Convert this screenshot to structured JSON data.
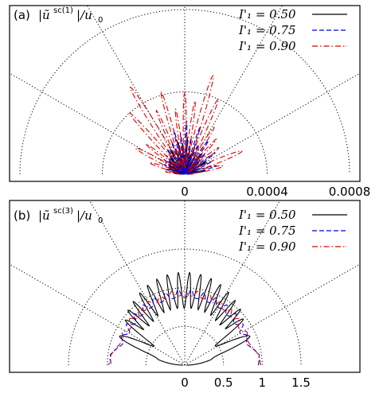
{
  "colors": {
    "s050": "#000000",
    "s075": "#0000dd",
    "s090": "#dd0000"
  },
  "chart_data": [
    {
      "type": "polar-line",
      "panel_label": "(a)",
      "title_main": "|ũ",
      "title_sup": "sc(1)",
      "title_tail": "|/u",
      "title_sub": "0",
      "radial_ticks": [
        "0",
        "0.0004",
        "0.0008"
      ],
      "rlim": [
        0,
        0.0008
      ],
      "angle_range_deg": [
        0,
        180
      ],
      "angular_grid_deg": [
        30,
        60,
        90,
        120,
        150
      ],
      "radial_grid": [
        0.0004,
        0.0008
      ],
      "grid": true,
      "legend_position": "top-right",
      "series": [
        {
          "name": "I'₁ = 0.50",
          "color_key": "s050",
          "dash": "solid",
          "spikes": [
            [
              2,
              3e-05,
              2
            ],
            [
              10,
              0.0001,
              4
            ],
            [
              20,
              8e-05,
              3
            ],
            [
              30,
              0.00012,
              3
            ],
            [
              40,
              9e-05,
              3
            ],
            [
              50,
              0.00013,
              3
            ],
            [
              60,
              0.0001,
              3
            ],
            [
              70,
              0.00014,
              2.5
            ],
            [
              78,
              0.00012,
              2.5
            ],
            [
              86,
              0.00018,
              2
            ],
            [
              94,
              0.00015,
              2
            ],
            [
              102,
              0.00016,
              2
            ],
            [
              110,
              0.00013,
              2.5
            ],
            [
              120,
              0.00014,
              3
            ],
            [
              130,
              0.00011,
              3
            ],
            [
              140,
              0.0001,
              3
            ],
            [
              150,
              9e-05,
              3
            ],
            [
              160,
              8e-05,
              3
            ],
            [
              170,
              6e-05,
              4
            ],
            [
              178,
              3e-05,
              2
            ]
          ]
        },
        {
          "name": "I'₁ = 0.75",
          "color_key": "s075",
          "dash": "6,3",
          "spikes": [
            [
              4,
              4e-05,
              3
            ],
            [
              15,
              0.00016,
              4
            ],
            [
              25,
              0.00014,
              3
            ],
            [
              35,
              0.00018,
              3
            ],
            [
              45,
              0.00014,
              3
            ],
            [
              55,
              0.0002,
              3
            ],
            [
              65,
              0.00016,
              2.5
            ],
            [
              72,
              0.00024,
              2
            ],
            [
              80,
              0.00018,
              2
            ],
            [
              88,
              0.00026,
              2
            ],
            [
              96,
              0.0002,
              2
            ],
            [
              104,
              0.00022,
              2
            ],
            [
              112,
              0.00017,
              2.5
            ],
            [
              125,
              0.00015,
              3
            ],
            [
              135,
              0.00013,
              3
            ],
            [
              145,
              0.00012,
              3
            ],
            [
              155,
              0.00011,
              3
            ],
            [
              165,
              0.0001,
              3
            ],
            [
              175,
              5e-05,
              3
            ]
          ]
        },
        {
          "name": "I'₁ = 0.90",
          "color_key": "s090",
          "dash": "7,3,1.5,3",
          "spikes": [
            [
              2,
              4e-05,
              3
            ],
            [
              12,
              0.00019,
              5
            ],
            [
              22,
              0.0003,
              4.5
            ],
            [
              38,
              0.00021,
              4
            ],
            [
              48,
              0.00023,
              3
            ],
            [
              58,
              0.00027,
              3
            ],
            [
              66,
              0.0004,
              3
            ],
            [
              74,
              0.0005,
              3
            ],
            [
              82,
              0.00036,
              2.5
            ],
            [
              90,
              0.0004,
              2.5
            ],
            [
              98,
              0.00032,
              2.5
            ],
            [
              106,
              0.00042,
              2.5
            ],
            [
              114,
              0.00034,
              2.5
            ],
            [
              122,
              0.0005,
              3
            ],
            [
              132,
              0.0004,
              3
            ],
            [
              142,
              0.00024,
              3
            ],
            [
              152,
              0.00027,
              4
            ],
            [
              162,
              0.00018,
              4
            ],
            [
              172,
              0.0001,
              4
            ],
            [
              178,
              4e-05,
              2
            ]
          ]
        }
      ]
    },
    {
      "type": "polar-line",
      "panel_label": "(b)",
      "title_main": "|ũ",
      "title_sup": "sc(3)",
      "title_tail": "|/u",
      "title_sub": "0",
      "radial_ticks": [
        "0",
        "0.5",
        "1",
        "1.5"
      ],
      "rlim": [
        0,
        1.5
      ],
      "angle_range_deg": [
        0,
        180
      ],
      "angular_grid_deg": [
        30,
        60,
        90,
        120,
        150
      ],
      "radial_grid": [
        0.5,
        1.0,
        1.5
      ],
      "grid": true,
      "legend_position": "top-right",
      "series": [
        {
          "name": "I'₁ = 0.50",
          "color_key": "s050",
          "dash": "solid",
          "base": [
            [
              0,
              0.02
            ],
            [
              5,
              0.15
            ],
            [
              12,
              0.35
            ],
            [
              20,
              0.4
            ],
            [
              30,
              0.38
            ],
            [
              40,
              0.6
            ],
            [
              60,
              0.7
            ],
            [
              90,
              0.72
            ],
            [
              120,
              0.7
            ],
            [
              140,
              0.6
            ],
            [
              150,
              0.38
            ],
            [
              160,
              0.4
            ],
            [
              168,
              0.35
            ],
            [
              175,
              0.15
            ],
            [
              180,
              0.02
            ]
          ],
          "spikes": [
            [
              24,
              0.92,
              5
            ],
            [
              38,
              0.96,
              3
            ],
            [
              45,
              1.02,
              2.5
            ],
            [
              52,
              1.06,
              2
            ],
            [
              59,
              1.1,
              2
            ],
            [
              66,
              1.14,
              2
            ],
            [
              73,
              1.17,
              2
            ],
            [
              80,
              1.19,
              2
            ],
            [
              87,
              1.2,
              1.8
            ],
            [
              94,
              1.2,
              1.8
            ],
            [
              101,
              1.19,
              2
            ],
            [
              108,
              1.17,
              2
            ],
            [
              115,
              1.14,
              2
            ],
            [
              122,
              1.1,
              2
            ],
            [
              129,
              1.06,
              2
            ],
            [
              136,
              1.02,
              2.5
            ],
            [
              143,
              0.96,
              3
            ],
            [
              156,
              0.92,
              5
            ]
          ]
        },
        {
          "name": "I'₁ = 0.75",
          "color_key": "s075",
          "dash": "6,3",
          "base": [
            [
              0,
              0.95
            ],
            [
              8,
              0.97
            ],
            [
              18,
              0.85
            ],
            [
              30,
              0.82
            ],
            [
              45,
              0.84
            ],
            [
              60,
              0.86
            ],
            [
              90,
              0.88
            ],
            [
              120,
              0.86
            ],
            [
              135,
              0.84
            ],
            [
              150,
              0.82
            ],
            [
              162,
              0.85
            ],
            [
              172,
              0.97
            ],
            [
              180,
              0.95
            ]
          ],
          "spikes": [
            [
              25,
              0.9,
              3
            ],
            [
              35,
              0.92,
              2.5
            ],
            [
              45,
              0.94,
              2
            ],
            [
              55,
              0.95,
              2
            ],
            [
              65,
              0.96,
              2
            ],
            [
              75,
              0.97,
              2
            ],
            [
              85,
              0.98,
              2
            ],
            [
              95,
              0.98,
              2
            ],
            [
              105,
              0.97,
              2
            ],
            [
              115,
              0.96,
              2
            ],
            [
              125,
              0.95,
              2
            ],
            [
              135,
              0.94,
              2
            ],
            [
              145,
              0.92,
              2.5
            ],
            [
              155,
              0.9,
              3
            ]
          ]
        },
        {
          "name": "I'₁ = 0.90",
          "color_key": "s090",
          "dash": "7,3,1.5,3",
          "base": [
            [
              0,
              0.98
            ],
            [
              8,
              0.96
            ],
            [
              18,
              0.88
            ],
            [
              30,
              0.84
            ],
            [
              45,
              0.86
            ],
            [
              60,
              0.88
            ],
            [
              90,
              0.9
            ],
            [
              120,
              0.88
            ],
            [
              135,
              0.86
            ],
            [
              150,
              0.84
            ],
            [
              162,
              0.88
            ],
            [
              172,
              0.96
            ],
            [
              180,
              0.98
            ]
          ],
          "spikes": [
            [
              28,
              0.91,
              3
            ],
            [
              40,
              0.93,
              2.5
            ],
            [
              50,
              0.94,
              2
            ],
            [
              60,
              0.95,
              2
            ],
            [
              70,
              0.96,
              2
            ],
            [
              80,
              0.97,
              2
            ],
            [
              90,
              0.97,
              2
            ],
            [
              100,
              0.97,
              2
            ],
            [
              110,
              0.96,
              2
            ],
            [
              120,
              0.95,
              2
            ],
            [
              130,
              0.94,
              2
            ],
            [
              140,
              0.93,
              2.5
            ],
            [
              152,
              0.91,
              3
            ]
          ]
        }
      ]
    }
  ]
}
